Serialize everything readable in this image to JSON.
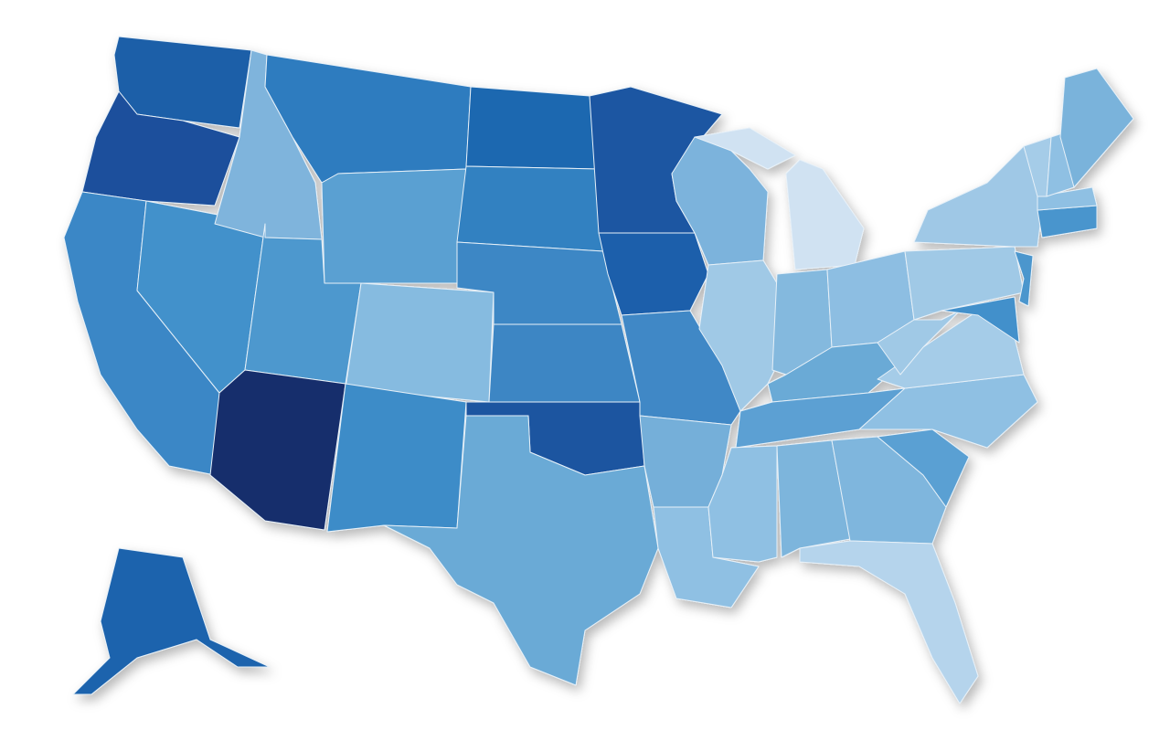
{
  "map": {
    "background": "#ffffff",
    "border_color": "#e6f0f8",
    "regions": [
      {
        "color": "#1f5fa8"
      },
      {
        "color": "#1a4f9c"
      },
      {
        "color": "#3a87c6"
      },
      {
        "color": "#4291cb"
      },
      {
        "color": "#7fb4dc"
      },
      {
        "color": "#2f7bbf"
      },
      {
        "color": "#5aa0d2"
      },
      {
        "color": "#4e98ce"
      },
      {
        "color": "#86bbe0"
      },
      {
        "color": "#172f6c"
      },
      {
        "color": "#3d8cc8"
      },
      {
        "color": "#1e68b0"
      },
      {
        "color": "#3381c1"
      },
      {
        "color": "#3e87c5"
      },
      {
        "color": "#3c86c4"
      },
      {
        "color": "#1a55a0"
      },
      {
        "color": "#6aaad6"
      },
      {
        "color": "#1a56a2"
      },
      {
        "color": "#1e5fab"
      },
      {
        "color": "#3f88c6"
      },
      {
        "color": "#74afd9"
      },
      {
        "color": "#8fc0e3"
      },
      {
        "color": "#7cb3dc"
      },
      {
        "color": "#a0c9e6"
      },
      {
        "color": "#d0e2f2"
      },
      {
        "color": "#d0e2f2"
      },
      {
        "color": "#84b9de"
      },
      {
        "color": "#8dbee2"
      },
      {
        "color": "#6aaad6"
      },
      {
        "color": "#5ba0d3"
      },
      {
        "color": "#8fc0e3"
      },
      {
        "color": "#7db5dc"
      },
      {
        "color": "#7fb6dd"
      },
      {
        "color": "#b5d4ec"
      },
      {
        "color": "#5aa0d3"
      },
      {
        "color": "#8fc0e3"
      },
      {
        "color": "#a5cce8"
      },
      {
        "color": "#a0c9e6"
      },
      {
        "color": "#a0c9e6"
      },
      {
        "color": "#9fc8e6"
      },
      {
        "color": "#4b96cd"
      },
      {
        "color": "#4290cb"
      },
      {
        "color": "#4a95cd"
      },
      {
        "color": "#8fc0e3"
      },
      {
        "color": "#a5cce8"
      },
      {
        "color": "#8fc0e3"
      },
      {
        "color": "#7ab3db"
      },
      {
        "color": "#1f64ad"
      }
    ]
  }
}
